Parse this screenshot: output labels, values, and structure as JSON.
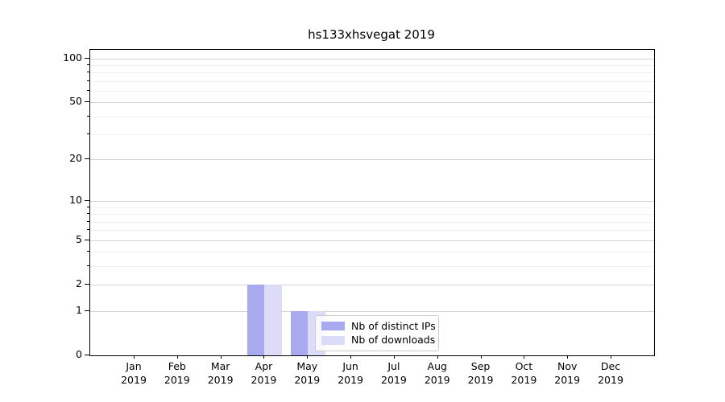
{
  "chart_data": {
    "type": "bar",
    "title": "hs133xhsvegat 2019",
    "categories": [
      "Jan",
      "Feb",
      "Mar",
      "Apr",
      "May",
      "Jun",
      "Jul",
      "Aug",
      "Sep",
      "Oct",
      "Nov",
      "Dec"
    ],
    "x_tick_year": "2019",
    "series": [
      {
        "name": "Nb of distinct IPs",
        "color": "#a9a9ef",
        "values": [
          0,
          0,
          0,
          2,
          1,
          0,
          0,
          0,
          0,
          0,
          0,
          0
        ]
      },
      {
        "name": "Nb of downloads",
        "color": "#dcdcf8",
        "values": [
          0,
          0,
          0,
          2,
          1,
          0,
          0,
          0,
          0,
          0,
          0,
          0
        ]
      }
    ],
    "y_axis": {
      "scale": "log1p",
      "major_ticks": [
        0,
        1,
        2,
        5,
        10,
        20,
        50,
        100
      ],
      "minor_ticks": [
        3,
        4,
        6,
        7,
        8,
        9,
        30,
        40,
        60,
        70,
        80,
        90
      ],
      "ylim": [
        0,
        113
      ]
    },
    "legend": {
      "position": "lower center",
      "entries": [
        "Nb of distinct IPs",
        "Nb of downloads"
      ]
    },
    "colors": {
      "axis": "#000000",
      "grid_major": "#d4d4d4",
      "grid_minor": "#efefef",
      "legend_border": "#cccccc",
      "background": "#ffffff"
    }
  }
}
